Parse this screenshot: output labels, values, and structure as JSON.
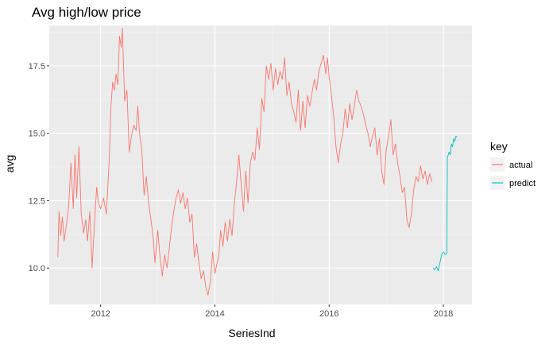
{
  "chart_data": {
    "type": "line",
    "title": "Avg high/low price",
    "xlabel": "SeriesInd",
    "ylabel": "avg",
    "xlim": [
      2011.1,
      2018.5
    ],
    "ylim": [
      8.65,
      19.0
    ],
    "x_ticks": [
      2012,
      2014,
      2016,
      2018
    ],
    "x_tick_labels": [
      "2012",
      "2014",
      "2016",
      "2018"
    ],
    "y_ticks": [
      10.0,
      12.5,
      15.0,
      17.5
    ],
    "y_tick_labels": [
      "10.0",
      "12.5",
      "15.0",
      "17.5"
    ],
    "grid": true,
    "legend": {
      "title": "key",
      "position": "right"
    },
    "series": [
      {
        "name": "actual",
        "color": "#f8766d",
        "points": [
          [
            2011.25,
            10.4
          ],
          [
            2011.27,
            12.1
          ],
          [
            2011.3,
            11.2
          ],
          [
            2011.33,
            11.9
          ],
          [
            2011.36,
            11.0
          ],
          [
            2011.4,
            11.6
          ],
          [
            2011.44,
            12.3
          ],
          [
            2011.48,
            13.9
          ],
          [
            2011.52,
            12.2
          ],
          [
            2011.55,
            14.2
          ],
          [
            2011.58,
            12.6
          ],
          [
            2011.62,
            14.5
          ],
          [
            2011.66,
            12.0
          ],
          [
            2011.7,
            11.3
          ],
          [
            2011.74,
            11.8
          ],
          [
            2011.77,
            11.0
          ],
          [
            2011.81,
            12.1
          ],
          [
            2011.85,
            10.0
          ],
          [
            2011.89,
            11.6
          ],
          [
            2011.93,
            13.0
          ],
          [
            2011.96,
            12.4
          ],
          [
            2012.0,
            12.2
          ],
          [
            2012.05,
            12.6
          ],
          [
            2012.1,
            12.0
          ],
          [
            2012.15,
            14.0
          ],
          [
            2012.18,
            16.0
          ],
          [
            2012.21,
            16.9
          ],
          [
            2012.24,
            16.6
          ],
          [
            2012.27,
            17.2
          ],
          [
            2012.3,
            16.8
          ],
          [
            2012.33,
            18.6
          ],
          [
            2012.36,
            18.2
          ],
          [
            2012.38,
            18.9
          ],
          [
            2012.42,
            16.2
          ],
          [
            2012.46,
            16.6
          ],
          [
            2012.5,
            14.3
          ],
          [
            2012.54,
            14.9
          ],
          [
            2012.58,
            15.3
          ],
          [
            2012.62,
            15.1
          ],
          [
            2012.65,
            16.0
          ],
          [
            2012.68,
            15.0
          ],
          [
            2012.72,
            14.4
          ],
          [
            2012.76,
            12.7
          ],
          [
            2012.8,
            13.4
          ],
          [
            2012.84,
            12.4
          ],
          [
            2012.88,
            11.8
          ],
          [
            2012.92,
            11.1
          ],
          [
            2012.95,
            10.2
          ],
          [
            2013.0,
            11.4
          ],
          [
            2013.04,
            10.4
          ],
          [
            2013.08,
            9.7
          ],
          [
            2013.12,
            10.5
          ],
          [
            2013.16,
            10.0
          ],
          [
            2013.2,
            10.7
          ],
          [
            2013.24,
            11.5
          ],
          [
            2013.28,
            12.1
          ],
          [
            2013.32,
            12.6
          ],
          [
            2013.36,
            12.9
          ],
          [
            2013.4,
            12.4
          ],
          [
            2013.44,
            12.8
          ],
          [
            2013.48,
            12.2
          ],
          [
            2013.52,
            12.6
          ],
          [
            2013.56,
            11.7
          ],
          [
            2013.6,
            12.0
          ],
          [
            2013.64,
            10.4
          ],
          [
            2013.68,
            10.9
          ],
          [
            2013.72,
            10.2
          ],
          [
            2013.76,
            9.6
          ],
          [
            2013.8,
            9.9
          ],
          [
            2013.84,
            9.3
          ],
          [
            2013.88,
            9.0
          ],
          [
            2013.92,
            9.5
          ],
          [
            2013.96,
            10.6
          ],
          [
            2014.0,
            9.8
          ],
          [
            2014.04,
            10.2
          ],
          [
            2014.07,
            10.5
          ],
          [
            2014.1,
            11.4
          ],
          [
            2014.14,
            10.8
          ],
          [
            2014.18,
            11.7
          ],
          [
            2014.22,
            11.0
          ],
          [
            2014.26,
            11.8
          ],
          [
            2014.3,
            11.2
          ],
          [
            2014.34,
            12.4
          ],
          [
            2014.38,
            13.2
          ],
          [
            2014.42,
            14.2
          ],
          [
            2014.46,
            13.1
          ],
          [
            2014.5,
            12.1
          ],
          [
            2014.54,
            13.6
          ],
          [
            2014.58,
            12.4
          ],
          [
            2014.62,
            13.9
          ],
          [
            2014.66,
            14.3
          ],
          [
            2014.7,
            14.0
          ],
          [
            2014.74,
            15.2
          ],
          [
            2014.78,
            14.4
          ],
          [
            2014.82,
            16.3
          ],
          [
            2014.86,
            15.8
          ],
          [
            2014.9,
            17.5
          ],
          [
            2014.94,
            17.0
          ],
          [
            2014.98,
            17.6
          ],
          [
            2015.02,
            16.6
          ],
          [
            2015.06,
            17.4
          ],
          [
            2015.1,
            16.8
          ],
          [
            2015.14,
            17.3
          ],
          [
            2015.18,
            17.0
          ],
          [
            2015.22,
            17.8
          ],
          [
            2015.26,
            16.4
          ],
          [
            2015.3,
            16.9
          ],
          [
            2015.34,
            16.1
          ],
          [
            2015.38,
            15.8
          ],
          [
            2015.42,
            15.4
          ],
          [
            2015.46,
            16.6
          ],
          [
            2015.5,
            15.1
          ],
          [
            2015.54,
            16.2
          ],
          [
            2015.58,
            15.2
          ],
          [
            2015.62,
            16.4
          ],
          [
            2015.66,
            16.0
          ],
          [
            2015.7,
            16.5
          ],
          [
            2015.74,
            17.0
          ],
          [
            2015.78,
            16.6
          ],
          [
            2015.82,
            17.3
          ],
          [
            2015.86,
            17.6
          ],
          [
            2015.9,
            17.9
          ],
          [
            2015.94,
            17.2
          ],
          [
            2015.97,
            17.8
          ],
          [
            2016.0,
            17.1
          ],
          [
            2016.04,
            16.4
          ],
          [
            2016.08,
            15.6
          ],
          [
            2016.12,
            14.5
          ],
          [
            2016.16,
            13.9
          ],
          [
            2016.2,
            14.6
          ],
          [
            2016.24,
            15.0
          ],
          [
            2016.28,
            15.9
          ],
          [
            2016.32,
            15.2
          ],
          [
            2016.36,
            16.1
          ],
          [
            2016.4,
            15.5
          ],
          [
            2016.44,
            16.0
          ],
          [
            2016.48,
            16.6
          ],
          [
            2016.52,
            16.2
          ],
          [
            2016.56,
            16.0
          ],
          [
            2016.6,
            15.7
          ],
          [
            2016.64,
            15.3
          ],
          [
            2016.68,
            15.0
          ],
          [
            2016.72,
            14.5
          ],
          [
            2016.76,
            14.9
          ],
          [
            2016.8,
            15.2
          ],
          [
            2016.84,
            14.2
          ],
          [
            2016.88,
            14.8
          ],
          [
            2016.92,
            13.6
          ],
          [
            2016.96,
            13.1
          ],
          [
            2017.0,
            14.4
          ],
          [
            2017.04,
            14.9
          ],
          [
            2017.08,
            15.5
          ],
          [
            2017.12,
            14.2
          ],
          [
            2017.16,
            14.6
          ],
          [
            2017.2,
            13.9
          ],
          [
            2017.24,
            13.4
          ],
          [
            2017.28,
            12.8
          ],
          [
            2017.32,
            13.0
          ],
          [
            2017.36,
            11.8
          ],
          [
            2017.4,
            11.5
          ],
          [
            2017.44,
            12.0
          ],
          [
            2017.48,
            12.9
          ],
          [
            2017.52,
            13.4
          ],
          [
            2017.56,
            13.2
          ],
          [
            2017.6,
            13.8
          ],
          [
            2017.64,
            13.3
          ],
          [
            2017.68,
            13.6
          ],
          [
            2017.72,
            13.1
          ],
          [
            2017.76,
            13.5
          ],
          [
            2017.8,
            13.2
          ]
        ]
      },
      {
        "name": "predict",
        "color": "#00bfc4",
        "points": [
          [
            2017.82,
            10.0
          ],
          [
            2017.85,
            9.95
          ],
          [
            2017.88,
            10.05
          ],
          [
            2017.91,
            9.9
          ],
          [
            2017.94,
            10.2
          ],
          [
            2017.97,
            10.5
          ],
          [
            2018.0,
            10.6
          ],
          [
            2018.03,
            10.5
          ],
          [
            2018.06,
            10.55
          ],
          [
            2018.07,
            14.1
          ],
          [
            2018.1,
            14.3
          ],
          [
            2018.12,
            14.2
          ],
          [
            2018.14,
            14.6
          ],
          [
            2018.16,
            14.5
          ],
          [
            2018.18,
            14.8
          ],
          [
            2018.2,
            14.7
          ],
          [
            2018.22,
            14.9
          ],
          [
            2018.24,
            14.85
          ]
        ]
      }
    ]
  }
}
